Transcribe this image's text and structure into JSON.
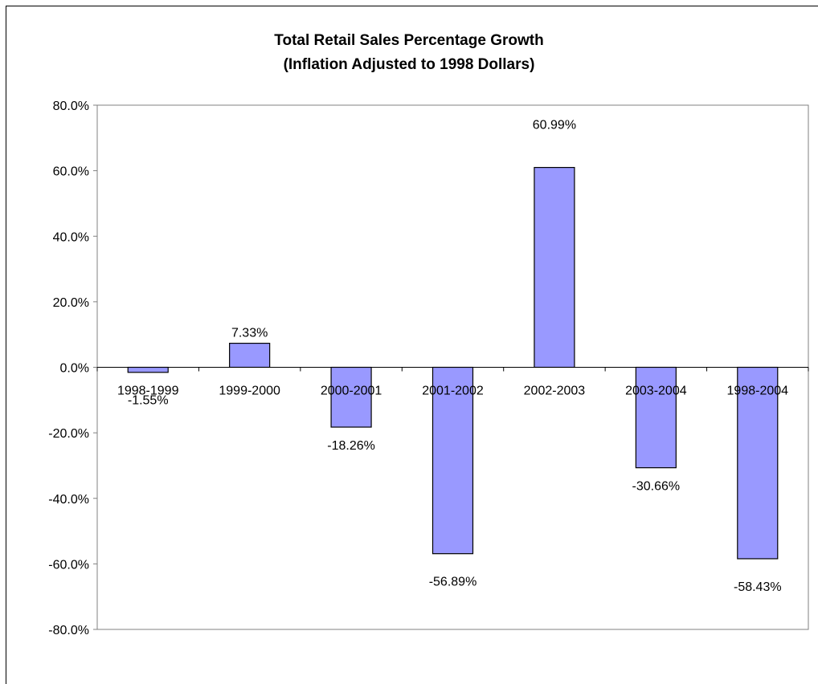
{
  "chart_data": {
    "type": "bar",
    "title": "Total Retail Sales Percentage Growth",
    "subtitle": "(Inflation Adjusted to 1998 Dollars)",
    "categories": [
      "1998-1999",
      "1999-2000",
      "2000-2001",
      "2001-2002",
      "2002-2003",
      "2003-2004",
      "1998-2004"
    ],
    "values": [
      -1.55,
      7.33,
      -18.26,
      -56.89,
      60.99,
      -30.66,
      -58.43
    ],
    "data_labels": [
      "-1.55%",
      "7.33%",
      "-18.26%",
      "-56.89%",
      "60.99%",
      "-30.66%",
      "-58.43%"
    ],
    "ylim": [
      -80,
      80
    ],
    "yticks": [
      80,
      60,
      40,
      20,
      0,
      -20,
      -40,
      -60,
      -80
    ],
    "ytick_labels": [
      "80.0%",
      "60.0%",
      "40.0%",
      "20.0%",
      "0.0%",
      "-20.0%",
      "-40.0%",
      "-60.0%",
      "-80.0%"
    ],
    "xlabel": "",
    "ylabel": "",
    "grid": false,
    "legend": "none",
    "colors": {
      "bar_fill": "#9999ff",
      "bar_stroke": "#000000",
      "axis": "#808080",
      "plot_border": "#808080"
    }
  }
}
